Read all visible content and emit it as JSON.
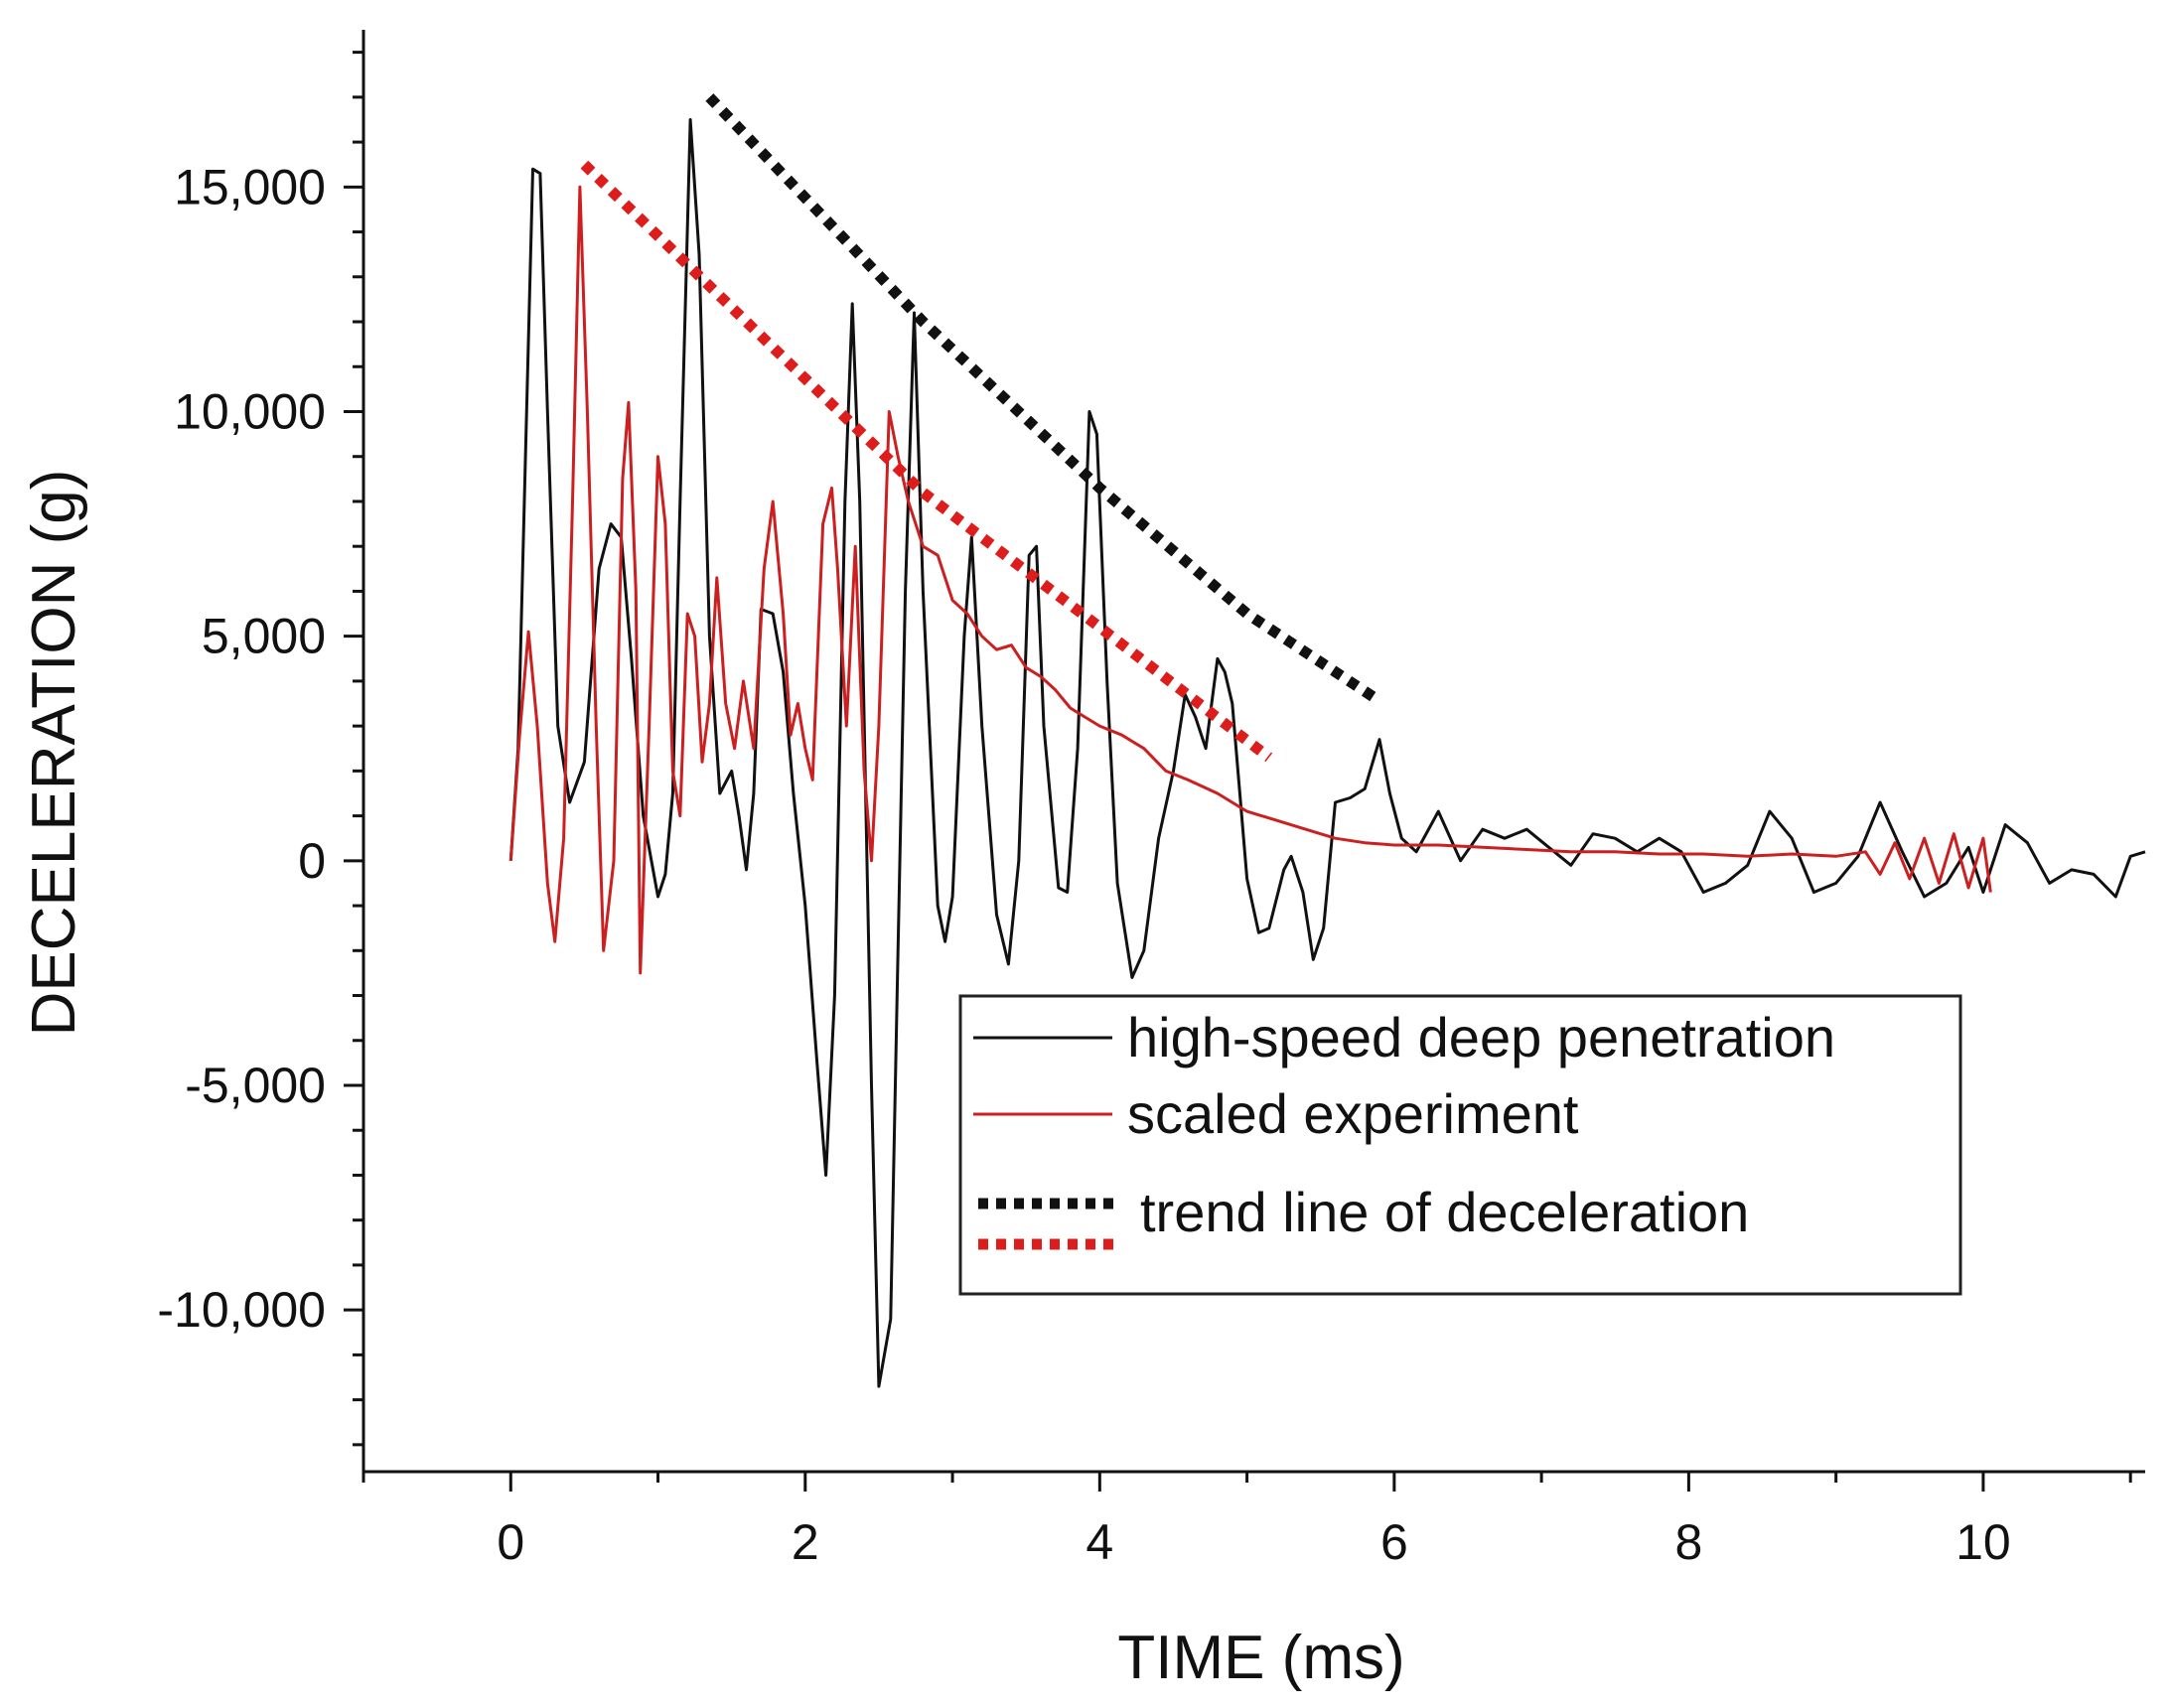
{
  "chart_data": {
    "type": "line",
    "title": "",
    "xlabel": "TIME (ms)",
    "ylabel": "DECELERATION (g)",
    "xlim": [
      -1,
      11.1
    ],
    "ylim": [
      -13600,
      18500
    ],
    "x_ticks": [
      0,
      2,
      4,
      6,
      8,
      10
    ],
    "y_ticks": [
      -10000,
      -5000,
      0,
      5000,
      10000,
      15000
    ],
    "x_tick_labels": [
      "0",
      "2",
      "4",
      "6",
      "8",
      "10"
    ],
    "y_tick_labels": [
      "-10,000",
      "-5,000",
      "0",
      "5,000",
      "10,000",
      "15,000"
    ],
    "grid": false,
    "legend": {
      "position": "bottom-right",
      "entries": [
        {
          "label": "high-speed deep penetration",
          "style": "solid",
          "color": "#111111"
        },
        {
          "label": "scaled experiment",
          "style": "solid",
          "color": "#cc2020"
        },
        {
          "label": "trend line of deceleration",
          "style": "dotted",
          "colors": [
            "#111111",
            "#dd1c1c"
          ]
        }
      ]
    },
    "series": [
      {
        "name": "high-speed deep penetration",
        "color": "#111111",
        "style": "solid",
        "points": [
          [
            0.0,
            0
          ],
          [
            0.05,
            2500
          ],
          [
            0.1,
            9000
          ],
          [
            0.15,
            15400
          ],
          [
            0.2,
            15300
          ],
          [
            0.25,
            10000
          ],
          [
            0.32,
            3000
          ],
          [
            0.4,
            1300
          ],
          [
            0.5,
            2200
          ],
          [
            0.6,
            6500
          ],
          [
            0.68,
            7500
          ],
          [
            0.75,
            7200
          ],
          [
            0.82,
            4500
          ],
          [
            0.9,
            1000
          ],
          [
            1.0,
            -800
          ],
          [
            1.05,
            -300
          ],
          [
            1.1,
            1500
          ],
          [
            1.15,
            8000
          ],
          [
            1.22,
            16500
          ],
          [
            1.28,
            13500
          ],
          [
            1.35,
            5000
          ],
          [
            1.42,
            1500
          ],
          [
            1.5,
            2000
          ],
          [
            1.55,
            1000
          ],
          [
            1.6,
            -200
          ],
          [
            1.65,
            1500
          ],
          [
            1.7,
            5600
          ],
          [
            1.78,
            5500
          ],
          [
            1.85,
            4200
          ],
          [
            1.92,
            1500
          ],
          [
            2.0,
            -1000
          ],
          [
            2.08,
            -4500
          ],
          [
            2.14,
            -7000
          ],
          [
            2.2,
            -3000
          ],
          [
            2.27,
            8000
          ],
          [
            2.32,
            12400
          ],
          [
            2.37,
            8000
          ],
          [
            2.45,
            -5000
          ],
          [
            2.5,
            -11700
          ],
          [
            2.58,
            -10200
          ],
          [
            2.63,
            -2000
          ],
          [
            2.68,
            6000
          ],
          [
            2.74,
            12200
          ],
          [
            2.8,
            6000
          ],
          [
            2.9,
            -1000
          ],
          [
            2.95,
            -1800
          ],
          [
            3.0,
            -800
          ],
          [
            3.08,
            5000
          ],
          [
            3.13,
            7200
          ],
          [
            3.2,
            3000
          ],
          [
            3.3,
            -1200
          ],
          [
            3.38,
            -2300
          ],
          [
            3.45,
            0
          ],
          [
            3.52,
            6800
          ],
          [
            3.57,
            7000
          ],
          [
            3.62,
            3000
          ],
          [
            3.72,
            -600
          ],
          [
            3.78,
            -700
          ],
          [
            3.85,
            2500
          ],
          [
            3.93,
            10000
          ],
          [
            3.98,
            9500
          ],
          [
            4.05,
            4000
          ],
          [
            4.12,
            -500
          ],
          [
            4.22,
            -2600
          ],
          [
            4.3,
            -2000
          ],
          [
            4.4,
            500
          ],
          [
            4.5,
            2000
          ],
          [
            4.58,
            3700
          ],
          [
            4.65,
            3200
          ],
          [
            4.72,
            2500
          ],
          [
            4.8,
            4500
          ],
          [
            4.85,
            4200
          ],
          [
            4.9,
            3500
          ],
          [
            5.0,
            -400
          ],
          [
            5.08,
            -1600
          ],
          [
            5.15,
            -1500
          ],
          [
            5.25,
            -200
          ],
          [
            5.3,
            100
          ],
          [
            5.38,
            -700
          ],
          [
            5.45,
            -2200
          ],
          [
            5.52,
            -1500
          ],
          [
            5.6,
            1300
          ],
          [
            5.7,
            1400
          ],
          [
            5.8,
            1600
          ],
          [
            5.9,
            2700
          ],
          [
            5.97,
            1500
          ],
          [
            6.05,
            500
          ],
          [
            6.15,
            200
          ],
          [
            6.3,
            1100
          ],
          [
            6.45,
            0
          ],
          [
            6.6,
            700
          ],
          [
            6.75,
            500
          ],
          [
            6.9,
            700
          ],
          [
            7.05,
            300
          ],
          [
            7.2,
            -100
          ],
          [
            7.35,
            600
          ],
          [
            7.5,
            500
          ],
          [
            7.65,
            200
          ],
          [
            7.8,
            500
          ],
          [
            7.95,
            200
          ],
          [
            8.1,
            -700
          ],
          [
            8.25,
            -500
          ],
          [
            8.4,
            -100
          ],
          [
            8.55,
            1100
          ],
          [
            8.7,
            500
          ],
          [
            8.85,
            -700
          ],
          [
            9.0,
            -500
          ],
          [
            9.15,
            100
          ],
          [
            9.3,
            1300
          ],
          [
            9.45,
            200
          ],
          [
            9.6,
            -800
          ],
          [
            9.75,
            -500
          ],
          [
            9.9,
            300
          ],
          [
            10.0,
            -700
          ],
          [
            10.15,
            800
          ],
          [
            10.3,
            400
          ],
          [
            10.45,
            -500
          ],
          [
            10.6,
            -200
          ],
          [
            10.75,
            -300
          ],
          [
            10.9,
            -800
          ],
          [
            11.0,
            100
          ],
          [
            11.1,
            200
          ]
        ]
      },
      {
        "name": "scaled experiment",
        "color": "#cc2020",
        "style": "solid",
        "points": [
          [
            0.0,
            0
          ],
          [
            0.06,
            2800
          ],
          [
            0.12,
            5100
          ],
          [
            0.18,
            3000
          ],
          [
            0.25,
            -500
          ],
          [
            0.3,
            -1800
          ],
          [
            0.36,
            500
          ],
          [
            0.42,
            8000
          ],
          [
            0.47,
            15000
          ],
          [
            0.52,
            10000
          ],
          [
            0.58,
            3000
          ],
          [
            0.63,
            -2000
          ],
          [
            0.7,
            0
          ],
          [
            0.76,
            8500
          ],
          [
            0.8,
            10200
          ],
          [
            0.85,
            6000
          ],
          [
            0.88,
            -2500
          ],
          [
            0.94,
            3000
          ],
          [
            1.0,
            9000
          ],
          [
            1.05,
            7500
          ],
          [
            1.1,
            2000
          ],
          [
            1.15,
            1000
          ],
          [
            1.2,
            5500
          ],
          [
            1.25,
            5000
          ],
          [
            1.3,
            2200
          ],
          [
            1.35,
            3500
          ],
          [
            1.4,
            6300
          ],
          [
            1.46,
            3500
          ],
          [
            1.52,
            2500
          ],
          [
            1.58,
            4000
          ],
          [
            1.65,
            2500
          ],
          [
            1.72,
            6500
          ],
          [
            1.78,
            8000
          ],
          [
            1.85,
            5500
          ],
          [
            1.9,
            2800
          ],
          [
            1.95,
            3500
          ],
          [
            2.0,
            2500
          ],
          [
            2.05,
            1800
          ],
          [
            2.12,
            7500
          ],
          [
            2.18,
            8300
          ],
          [
            2.22,
            6500
          ],
          [
            2.28,
            3000
          ],
          [
            2.34,
            7000
          ],
          [
            2.4,
            2000
          ],
          [
            2.45,
            0
          ],
          [
            2.5,
            3000
          ],
          [
            2.57,
            10000
          ],
          [
            2.63,
            9000
          ],
          [
            2.7,
            8000
          ],
          [
            2.8,
            7000
          ],
          [
            2.9,
            6800
          ],
          [
            3.0,
            5800
          ],
          [
            3.1,
            5500
          ],
          [
            3.2,
            5000
          ],
          [
            3.3,
            4700
          ],
          [
            3.4,
            4800
          ],
          [
            3.5,
            4300
          ],
          [
            3.6,
            4100
          ],
          [
            3.7,
            3800
          ],
          [
            3.8,
            3400
          ],
          [
            3.9,
            3200
          ],
          [
            4.0,
            3000
          ],
          [
            4.15,
            2800
          ],
          [
            4.3,
            2500
          ],
          [
            4.45,
            2000
          ],
          [
            4.6,
            1800
          ],
          [
            4.8,
            1500
          ],
          [
            5.0,
            1100
          ],
          [
            5.2,
            900
          ],
          [
            5.4,
            700
          ],
          [
            5.6,
            500
          ],
          [
            5.8,
            400
          ],
          [
            6.0,
            350
          ],
          [
            6.3,
            350
          ],
          [
            6.6,
            300
          ],
          [
            6.9,
            250
          ],
          [
            7.2,
            200
          ],
          [
            7.5,
            200
          ],
          [
            7.8,
            150
          ],
          [
            8.1,
            150
          ],
          [
            8.4,
            100
          ],
          [
            8.7,
            150
          ],
          [
            9.0,
            100
          ],
          [
            9.2,
            200
          ],
          [
            9.3,
            -300
          ],
          [
            9.4,
            400
          ],
          [
            9.5,
            -400
          ],
          [
            9.6,
            500
          ],
          [
            9.7,
            -500
          ],
          [
            9.8,
            600
          ],
          [
            9.9,
            -600
          ],
          [
            10.0,
            500
          ],
          [
            10.05,
            -700
          ]
        ]
      },
      {
        "name": "trend line of deceleration",
        "color": "#111111",
        "style": "dotted",
        "points": [
          [
            1.35,
            17000
          ],
          [
            2.8,
            12000
          ],
          [
            4.0,
            8300
          ],
          [
            5.0,
            5500
          ],
          [
            5.88,
            3600
          ]
        ]
      },
      {
        "name": "trend line of deceleration",
        "color": "#dd1c1c",
        "style": "dotted",
        "points": [
          [
            0.5,
            15500
          ],
          [
            1.6,
            12000
          ],
          [
            2.8,
            8200
          ],
          [
            4.0,
            5200
          ],
          [
            5.15,
            2300
          ]
        ]
      }
    ]
  }
}
